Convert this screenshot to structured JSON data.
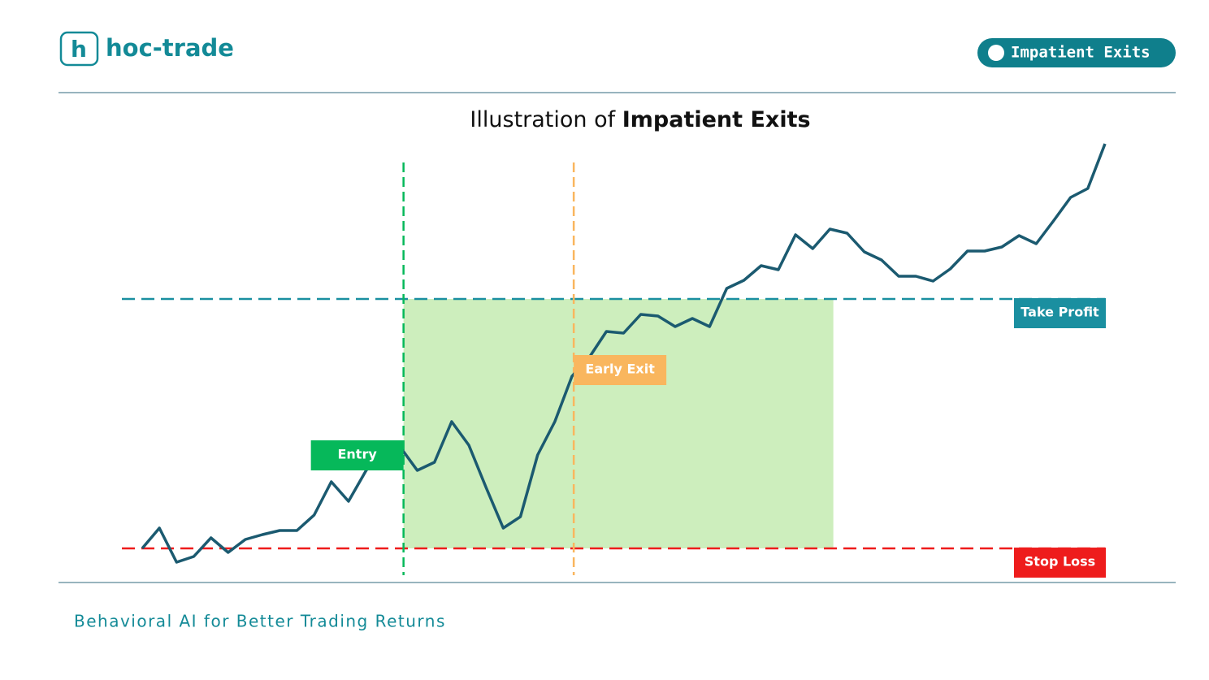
{
  "header": {
    "brand": "hoc-trade",
    "badge": "Impatient Exits"
  },
  "chart_data": {
    "type": "line",
    "title": [
      "Illustration of",
      "Impatient Exits"
    ],
    "x": [
      0,
      1,
      2,
      3,
      4,
      5,
      6,
      7,
      8,
      9,
      10,
      11,
      12,
      13,
      14,
      15,
      16,
      17,
      18,
      19,
      20,
      21,
      22,
      23,
      24,
      25,
      26,
      27,
      28,
      29,
      30,
      31,
      32,
      33,
      34,
      35,
      36,
      37,
      38,
      39,
      40,
      41,
      42,
      43,
      44,
      45,
      46,
      47,
      48,
      49,
      50,
      51,
      52,
      53,
      54,
      55,
      56
    ],
    "series": [
      {
        "color": "#1b5a70",
        "values": [
          8.4,
          13.4,
          5,
          6.4,
          11,
          7.4,
          10.6,
          11.8,
          12.8,
          12.8,
          16.6,
          24.8,
          20,
          27.4,
          33.8,
          33.4,
          27.6,
          29.6,
          39.6,
          33.8,
          23.4,
          13.4,
          16.2,
          31.4,
          39.6,
          50.8,
          55.4,
          61.8,
          61.4,
          66,
          65.6,
          63,
          65,
          63,
          72.4,
          74.4,
          78,
          77,
          85.6,
          82.2,
          87,
          86,
          81.4,
          79.4,
          75.4,
          75.4,
          74.2,
          77.2,
          81.6,
          81.6,
          82.6,
          85.4,
          83.4,
          89,
          94.8,
          97,
          108
        ]
      }
    ],
    "xlim": [
      0,
      56
    ],
    "ylim": [
      0,
      110
    ],
    "levels": [
      {
        "label": "Take Profit",
        "value": 69.8,
        "color": "#1a8fa0"
      },
      {
        "label": "Stop Loss",
        "value": 8.4,
        "color": "#ee1c1c"
      }
    ],
    "markers": [
      {
        "label": "Entry",
        "x": 15.2,
        "color": "#06b85a"
      },
      {
        "label": "Early Exit",
        "x": 25.1,
        "color": "#f9b65e"
      }
    ],
    "zone": {
      "x": [
        15.2,
        40.2
      ],
      "color": "#cdeebd"
    }
  },
  "footer": {
    "tagline": "Behavioral AI for Better Trading Returns"
  }
}
